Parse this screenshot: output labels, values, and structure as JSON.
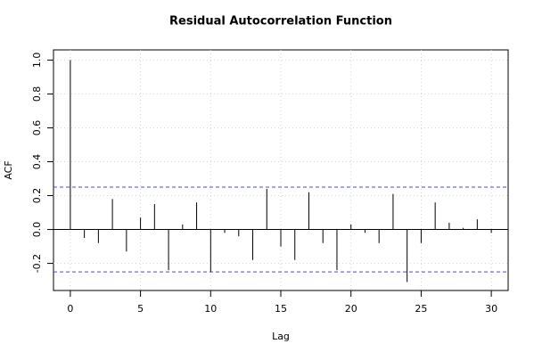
{
  "chart_data": {
    "type": "bar",
    "title": "Residual Autocorrelation Function",
    "x_label": "Lag",
    "y_label": "ACF",
    "x": [
      0,
      1,
      2,
      3,
      4,
      5,
      6,
      7,
      8,
      9,
      10,
      11,
      12,
      13,
      14,
      15,
      16,
      17,
      18,
      19,
      20,
      21,
      22,
      23,
      24,
      25,
      26,
      27,
      28,
      29,
      30
    ],
    "values": [
      1.0,
      -0.05,
      -0.08,
      0.18,
      -0.13,
      0.07,
      0.15,
      -0.24,
      0.03,
      0.16,
      -0.25,
      -0.02,
      -0.04,
      -0.18,
      0.24,
      -0.1,
      -0.18,
      0.22,
      -0.08,
      -0.24,
      0.03,
      -0.02,
      -0.08,
      0.21,
      -0.31,
      -0.08,
      0.16,
      0.04,
      0.01,
      0.06,
      -0.02
    ],
    "color": "#000000",
    "confidence_bounds": [
      0.25,
      -0.25
    ],
    "confidence_color": "#4a4ad8",
    "xlim": [
      -1.2,
      31.2
    ],
    "xticks": [
      0,
      5,
      10,
      15,
      20,
      25,
      30
    ],
    "ylim": [
      -0.36,
      1.06
    ],
    "yticks": [
      -0.2,
      {
        "value": 0,
        "label": "0.0"
      },
      0.2,
      0.4,
      0.6,
      0.8,
      {
        "value": 1,
        "label": "1.0"
      }
    ],
    "grid": true
  }
}
